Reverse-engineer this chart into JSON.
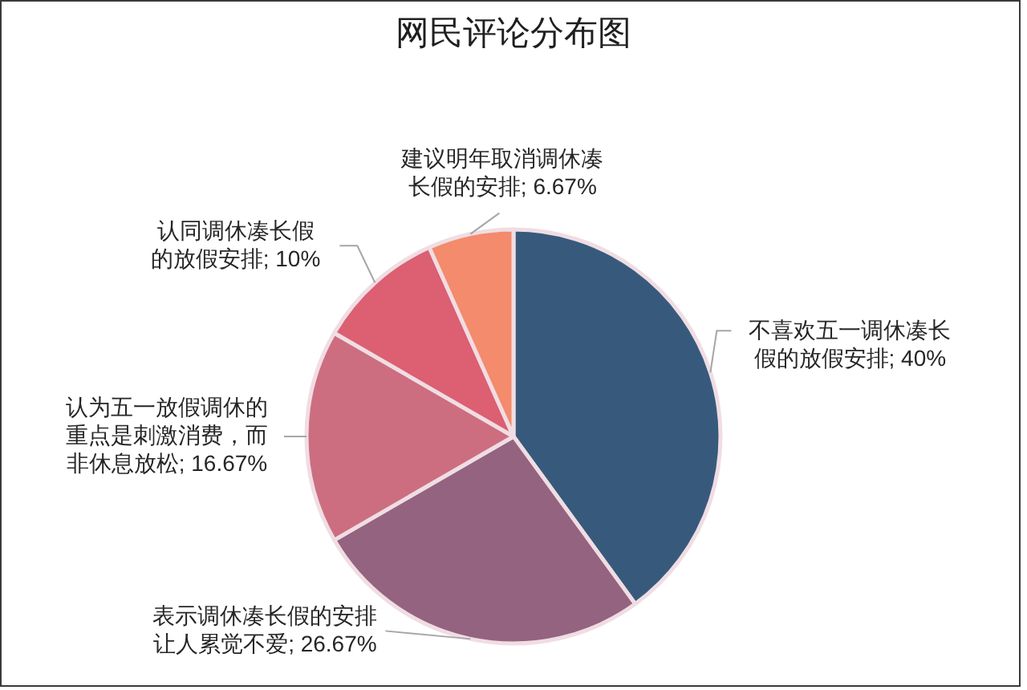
{
  "chart_data": {
    "type": "pie",
    "title": "网民评论分布图",
    "categories": [
      "不喜欢五一调休凑长假的放假安排",
      "表示调休凑长假的安排让人累觉不爱",
      "认为五一放假调休的重点是刺激消费，而非休息放松",
      "认同调休凑长假的放假安排",
      "建议明年取消调休凑长假的安排"
    ],
    "values": [
      40,
      26.67,
      16.67,
      10,
      6.67
    ],
    "colors": [
      "#375a7c",
      "#94637f",
      "#cc6e80",
      "#dc5f72",
      "#f38b6c"
    ],
    "value_labels": [
      "40%",
      "26.67%",
      "16.67%",
      "10%",
      "6.67%"
    ]
  }
}
